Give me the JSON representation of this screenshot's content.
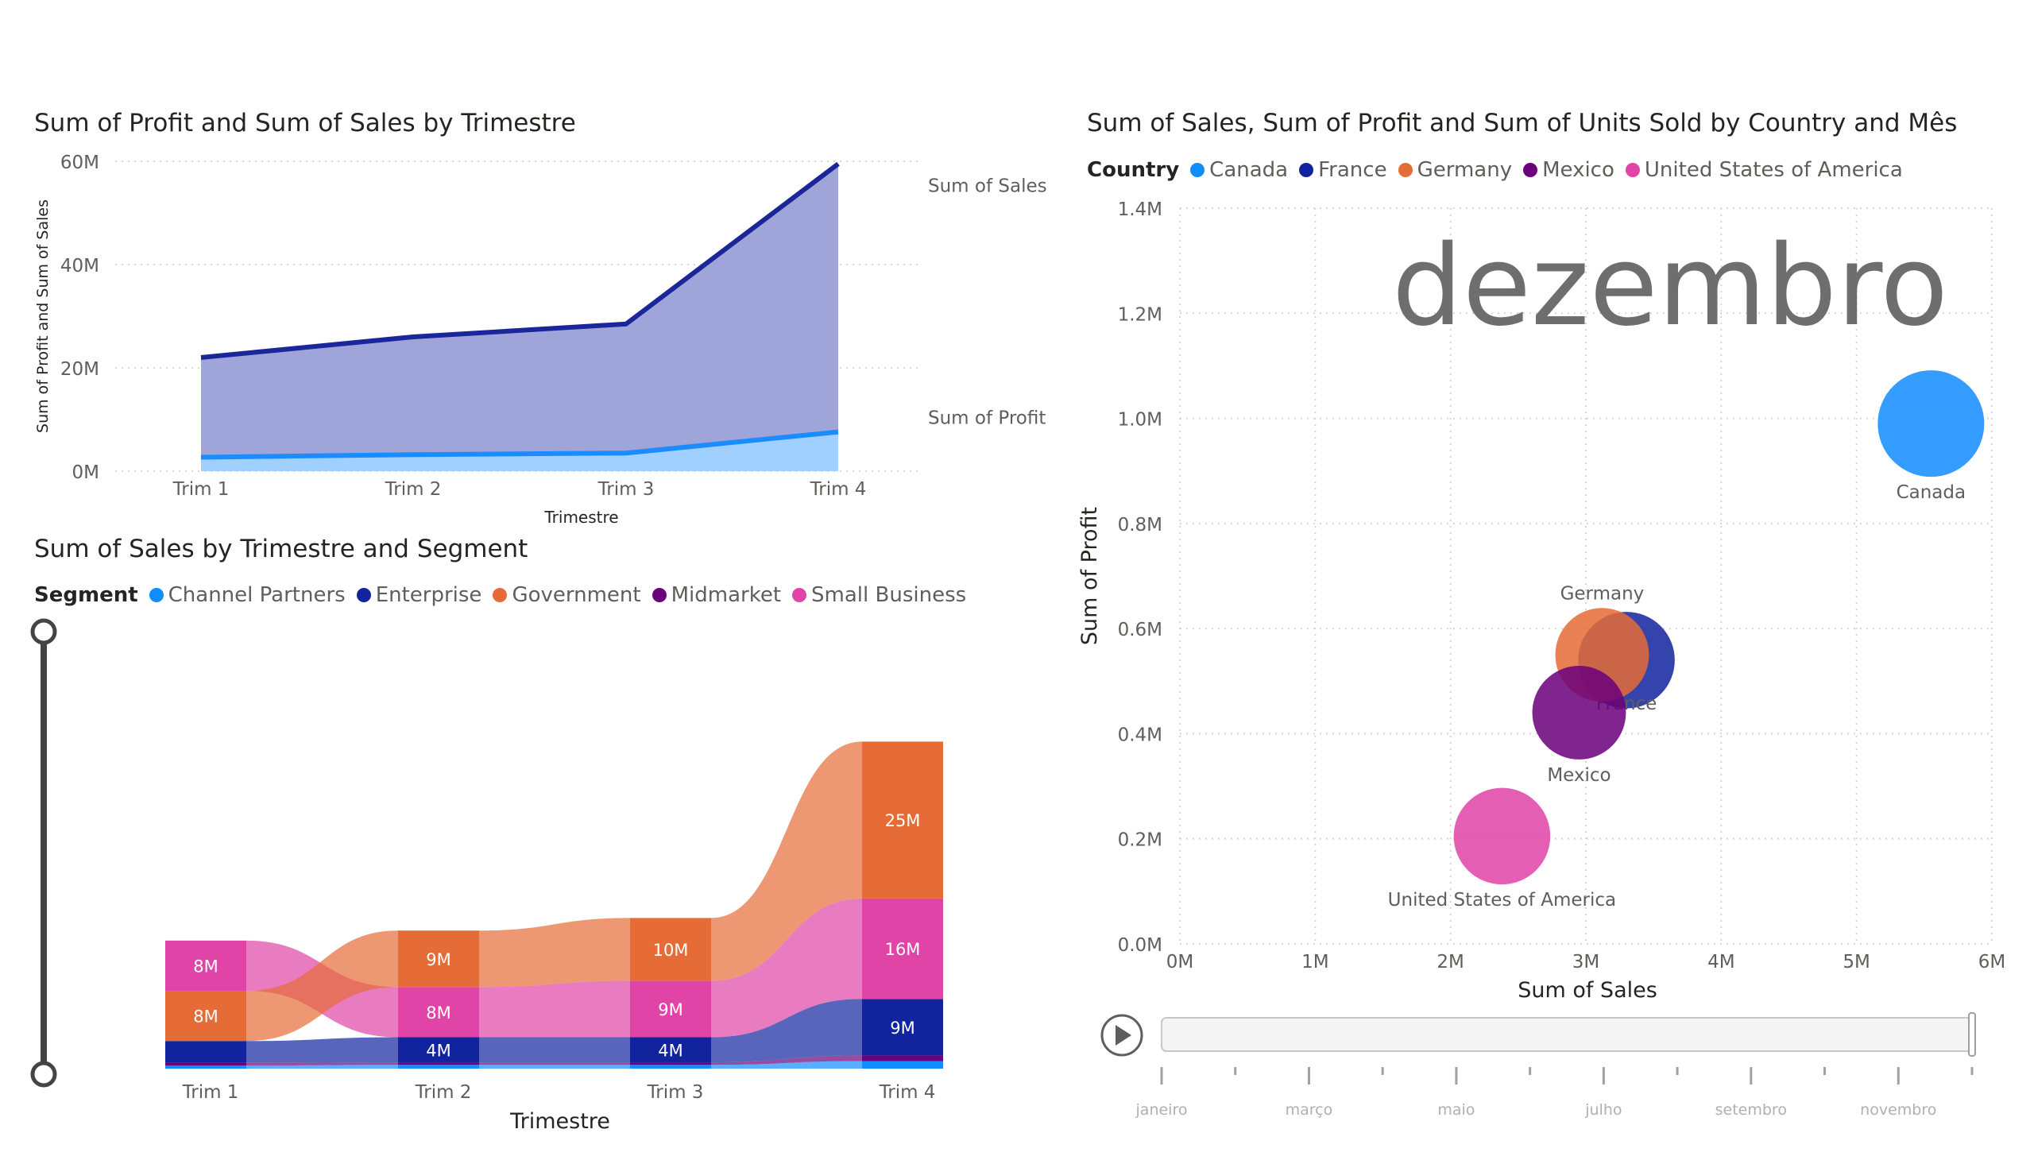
{
  "colors": {
    "sales_area": "#9fa5d8",
    "sales_line": "#1a2699",
    "profit_area": "#9fd0ff",
    "profit_line": "#1a8cff",
    "grid": "#d6d6d6",
    "axis_text": "#605e5c",
    "title_text": "#252423",
    "watermark": "#6e6e6e"
  },
  "chart_data": [
    {
      "id": "area",
      "type": "area",
      "title": "Sum of Profit and Sum of Sales by Trimestre",
      "xlabel": "Trimestre",
      "ylabel": "Sum of Profit and Sum of Sales",
      "categories": [
        "Trim 1",
        "Trim 2",
        "Trim 3",
        "Trim 4"
      ],
      "yticks": [
        "0M",
        "20M",
        "40M",
        "60M"
      ],
      "ylim": [
        0,
        60
      ],
      "grid": true,
      "series": [
        {
          "name": "Sum of  Sales",
          "values": [
            22,
            26,
            28.5,
            59.5
          ],
          "color": "#1a2699",
          "fill": "#9fa5d8"
        },
        {
          "name": "Sum of Profit",
          "values": [
            2.7,
            3.2,
            3.5,
            7.6
          ],
          "color": "#1a8cff",
          "fill": "#9fd0ff"
        }
      ]
    },
    {
      "id": "ribbon",
      "type": "bar",
      "stacked": true,
      "title": "Sum of Sales by Trimestre and Segment",
      "xlabel": "Trimestre",
      "categories": [
        "Trim 1",
        "Trim 2",
        "Trim 3",
        "Trim 4"
      ],
      "legend_title": "Segment",
      "legend_position": "top-left",
      "series": [
        {
          "name": "Channel Partners",
          "color": "#118dff",
          "values": [
            0.5,
            0.6,
            0.6,
            1.2
          ]
        },
        {
          "name": "Enterprise",
          "color": "#12239e",
          "values": [
            3.5,
            4,
            4,
            9
          ]
        },
        {
          "name": "Government",
          "color": "#e66c37",
          "values": [
            8,
            9,
            10,
            25
          ]
        },
        {
          "name": "Midmarket",
          "color": "#6b007b",
          "values": [
            0.4,
            0.4,
            0.4,
            0.9
          ]
        },
        {
          "name": "Small Business",
          "color": "#e044a7",
          "values": [
            8,
            8,
            9,
            16
          ]
        }
      ],
      "column_order": [
        [
          "Channel Partners",
          "Midmarket",
          "Enterprise",
          "Government",
          "Small Business"
        ],
        [
          "Channel Partners",
          "Midmarket",
          "Enterprise",
          "Small Business",
          "Government"
        ],
        [
          "Channel Partners",
          "Midmarket",
          "Enterprise",
          "Small Business",
          "Government"
        ],
        [
          "Channel Partners",
          "Midmarket",
          "Enterprise",
          "Small Business",
          "Government"
        ]
      ],
      "data_labels": [
        [
          "",
          "",
          "",
          "8M",
          "8M"
        ],
        [
          "",
          "",
          "4M",
          "8M",
          "9M"
        ],
        [
          "",
          "",
          "4M",
          "9M",
          "10M"
        ],
        [
          "",
          "",
          "9M",
          "16M",
          "25M"
        ]
      ]
    },
    {
      "id": "scatter",
      "type": "scatter",
      "title": "Sum of Sales, Sum of Profit and Sum of Units Sold by Country and Mês",
      "xlabel": "Sum of Sales",
      "ylabel": "Sum of Profit",
      "legend_title": "Country",
      "legend_position": "top-left",
      "xlim": [
        0,
        6
      ],
      "ylim": [
        0,
        1.4
      ],
      "xticks": [
        "0M",
        "1M",
        "2M",
        "3M",
        "4M",
        "5M",
        "6M"
      ],
      "yticks": [
        "0.0M",
        "0.2M",
        "0.4M",
        "0.6M",
        "0.8M",
        "1.0M",
        "1.2M",
        "1.4M"
      ],
      "grid": true,
      "play_axis_value": "dezembro",
      "points": [
        {
          "name": "Canada",
          "x": 5.55,
          "y": 0.99,
          "size": 1.0,
          "color": "#118dff",
          "label_pos": "below"
        },
        {
          "name": "France",
          "x": 3.3,
          "y": 0.54,
          "size": 0.82,
          "color": "#12239e",
          "label_pos": "below-right"
        },
        {
          "name": "Germany",
          "x": 3.12,
          "y": 0.55,
          "size": 0.77,
          "color": "#e66c37",
          "label_pos": "above"
        },
        {
          "name": "Mexico",
          "x": 2.95,
          "y": 0.44,
          "size": 0.77,
          "color": "#6b007b",
          "label_pos": "below"
        },
        {
          "name": "United States of America",
          "x": 2.38,
          "y": 0.205,
          "size": 0.82,
          "color": "#e044a7",
          "label_pos": "below"
        }
      ]
    }
  ],
  "play_axis": {
    "months_labeled": [
      "janeiro",
      "março",
      "maio",
      "julho",
      "setembro",
      "novembro"
    ],
    "current": "dezembro"
  }
}
